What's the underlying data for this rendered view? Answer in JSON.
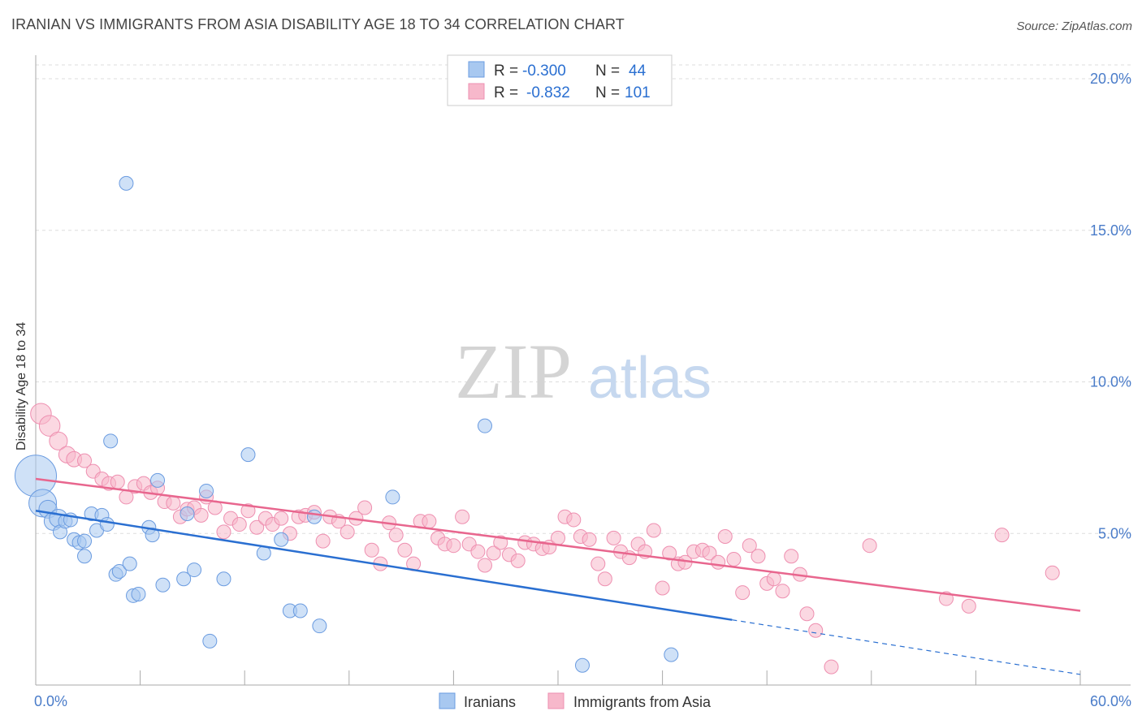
{
  "title": "IRANIAN VS IMMIGRANTS FROM ASIA DISABILITY AGE 18 TO 34 CORRELATION CHART",
  "source": "Source: ZipAtlas.com",
  "watermark": {
    "zip": "ZIP",
    "atlas": "atlas"
  },
  "colors": {
    "blue_fill": "#a8c8f0",
    "blue_stroke": "#6a9be0",
    "blue_line": "#2a6fd1",
    "pink_fill": "#f7b8cb",
    "pink_stroke": "#ee8fb0",
    "pink_line": "#e8668e",
    "tick_text": "#4a7cc9",
    "grid": "#dddddd"
  },
  "legend": {
    "r_label": "R =",
    "n_label": "N =",
    "rows": [
      {
        "r": "-0.300",
        "n": "44"
      },
      {
        "r": "-0.832",
        "n": "101"
      }
    ]
  },
  "bottom_legend": [
    "Iranians",
    "Immigrants from Asia"
  ],
  "chart_data": {
    "type": "scatter",
    "title": "IRANIAN VS IMMIGRANTS FROM ASIA DISABILITY AGE 18 TO 34 CORRELATION CHART",
    "xlabel": "",
    "ylabel": "Disability Age 18 to 34",
    "xlim": [
      0,
      60
    ],
    "ylim": [
      0,
      20
    ],
    "x_tick_labels": [
      "0.0%",
      "60.0%"
    ],
    "y_ticks": [
      5,
      10,
      15,
      20
    ],
    "y_tick_labels": [
      "5.0%",
      "10.0%",
      "15.0%",
      "20.0%"
    ],
    "grid": true,
    "legend_position": "top-center",
    "series": [
      {
        "name": "Iranians",
        "r": -0.3,
        "n": 44,
        "trend": {
          "x_start": 0,
          "y_start": 5.75,
          "x_solid_end": 40,
          "y_solid_end": 2.15,
          "x_end": 60,
          "y_end": 0.35
        },
        "points": [
          [
            0.0,
            6.9,
            3
          ],
          [
            0.4,
            6.0,
            2
          ],
          [
            0.7,
            5.8,
            1.3
          ],
          [
            1.0,
            5.4,
            1.3
          ],
          [
            1.3,
            5.5,
            1.3
          ],
          [
            1.4,
            5.05,
            1
          ],
          [
            1.7,
            5.4,
            1
          ],
          [
            2.0,
            5.45,
            1
          ],
          [
            2.2,
            4.8,
            1
          ],
          [
            2.5,
            4.7,
            1
          ],
          [
            2.8,
            4.75,
            1
          ],
          [
            2.8,
            4.25,
            1
          ],
          [
            3.2,
            5.65,
            1
          ],
          [
            3.5,
            5.1,
            1
          ],
          [
            3.8,
            5.6,
            1
          ],
          [
            4.1,
            5.3,
            1
          ],
          [
            4.3,
            8.05,
            1
          ],
          [
            4.6,
            3.65,
            1
          ],
          [
            4.8,
            3.75,
            1
          ],
          [
            5.2,
            16.55,
            1
          ],
          [
            5.4,
            4.0,
            1
          ],
          [
            5.6,
            2.95,
            1
          ],
          [
            5.9,
            3.0,
            1
          ],
          [
            6.5,
            5.2,
            1
          ],
          [
            6.7,
            4.95,
            1
          ],
          [
            7.0,
            6.75,
            1
          ],
          [
            7.3,
            3.3,
            1
          ],
          [
            8.5,
            3.5,
            1
          ],
          [
            8.7,
            5.65,
            1
          ],
          [
            9.1,
            3.8,
            1
          ],
          [
            9.8,
            6.4,
            1
          ],
          [
            10.0,
            1.45,
            1
          ],
          [
            10.8,
            3.5,
            1
          ],
          [
            12.2,
            7.6,
            1
          ],
          [
            13.1,
            4.35,
            1
          ],
          [
            14.1,
            4.8,
            1
          ],
          [
            14.6,
            2.45,
            1
          ],
          [
            15.2,
            2.45,
            1
          ],
          [
            16.0,
            5.55,
            1
          ],
          [
            16.3,
            1.95,
            1
          ],
          [
            20.5,
            6.2,
            1
          ],
          [
            25.8,
            8.55,
            1
          ],
          [
            31.4,
            0.65,
            1
          ],
          [
            36.5,
            1.0,
            1
          ]
        ]
      },
      {
        "name": "Immigrants from Asia",
        "r": -0.832,
        "n": 101,
        "trend": {
          "x_start": 0,
          "y_start": 6.8,
          "x_end": 60,
          "y_end": 2.45
        },
        "points": [
          [
            0.3,
            8.95,
            1.5
          ],
          [
            0.8,
            8.55,
            1.5
          ],
          [
            1.3,
            8.05,
            1.3
          ],
          [
            1.8,
            7.6,
            1.2
          ],
          [
            2.2,
            7.45,
            1.1
          ],
          [
            2.8,
            7.4,
            1
          ],
          [
            3.3,
            7.05,
            1
          ],
          [
            3.8,
            6.8,
            1
          ],
          [
            4.2,
            6.65,
            1
          ],
          [
            4.7,
            6.7,
            1
          ],
          [
            5.2,
            6.2,
            1
          ],
          [
            5.7,
            6.55,
            1
          ],
          [
            6.2,
            6.65,
            1
          ],
          [
            6.6,
            6.35,
            1
          ],
          [
            7.0,
            6.5,
            1
          ],
          [
            7.4,
            6.05,
            1
          ],
          [
            7.9,
            6.0,
            1
          ],
          [
            8.3,
            5.55,
            1
          ],
          [
            8.7,
            5.8,
            1
          ],
          [
            9.1,
            5.85,
            1
          ],
          [
            9.5,
            5.6,
            1
          ],
          [
            9.8,
            6.2,
            1
          ],
          [
            10.3,
            5.85,
            1
          ],
          [
            10.8,
            5.05,
            1
          ],
          [
            11.2,
            5.5,
            1
          ],
          [
            11.7,
            5.3,
            1
          ],
          [
            12.2,
            5.75,
            1
          ],
          [
            12.7,
            5.2,
            1
          ],
          [
            13.2,
            5.5,
            1
          ],
          [
            13.6,
            5.3,
            1
          ],
          [
            14.1,
            5.5,
            1
          ],
          [
            14.6,
            5.0,
            1
          ],
          [
            15.1,
            5.55,
            1
          ],
          [
            15.5,
            5.6,
            1
          ],
          [
            16.0,
            5.7,
            1
          ],
          [
            16.5,
            4.75,
            1
          ],
          [
            16.9,
            5.55,
            1
          ],
          [
            17.4,
            5.4,
            1
          ],
          [
            17.9,
            5.05,
            1
          ],
          [
            18.4,
            5.5,
            1
          ],
          [
            18.9,
            5.85,
            1
          ],
          [
            19.3,
            4.45,
            1
          ],
          [
            19.8,
            4.0,
            1
          ],
          [
            20.3,
            5.35,
            1
          ],
          [
            20.7,
            4.95,
            1
          ],
          [
            21.2,
            4.45,
            1
          ],
          [
            21.7,
            4.0,
            1
          ],
          [
            22.1,
            5.4,
            1
          ],
          [
            22.6,
            5.4,
            1
          ],
          [
            23.1,
            4.85,
            1
          ],
          [
            23.5,
            4.65,
            1
          ],
          [
            24.0,
            4.6,
            1
          ],
          [
            24.5,
            5.55,
            1
          ],
          [
            24.9,
            4.65,
            1
          ],
          [
            25.4,
            4.4,
            1
          ],
          [
            25.8,
            3.95,
            1
          ],
          [
            26.3,
            4.35,
            1
          ],
          [
            26.7,
            4.7,
            1
          ],
          [
            27.2,
            4.3,
            1
          ],
          [
            27.7,
            4.1,
            1
          ],
          [
            28.1,
            4.7,
            1
          ],
          [
            28.6,
            4.65,
            1
          ],
          [
            29.1,
            4.5,
            1
          ],
          [
            29.5,
            4.55,
            1
          ],
          [
            30.0,
            4.85,
            1
          ],
          [
            30.4,
            5.55,
            1
          ],
          [
            30.9,
            5.45,
            1
          ],
          [
            31.3,
            4.9,
            1
          ],
          [
            31.8,
            4.8,
            1
          ],
          [
            32.3,
            4.0,
            1
          ],
          [
            32.7,
            3.5,
            1
          ],
          [
            33.2,
            4.85,
            1
          ],
          [
            33.6,
            4.4,
            1
          ],
          [
            34.1,
            4.2,
            1
          ],
          [
            34.6,
            4.65,
            1
          ],
          [
            35.0,
            4.4,
            1
          ],
          [
            35.5,
            5.1,
            1
          ],
          [
            36.0,
            3.2,
            1
          ],
          [
            36.4,
            4.35,
            1
          ],
          [
            36.9,
            4.0,
            1
          ],
          [
            37.3,
            4.05,
            1
          ],
          [
            37.8,
            4.4,
            1
          ],
          [
            38.3,
            4.45,
            1
          ],
          [
            38.7,
            4.35,
            1
          ],
          [
            39.2,
            4.05,
            1
          ],
          [
            39.6,
            4.9,
            1
          ],
          [
            40.1,
            4.15,
            1
          ],
          [
            40.6,
            3.05,
            1
          ],
          [
            41.0,
            4.6,
            1
          ],
          [
            41.5,
            4.25,
            1
          ],
          [
            42.0,
            3.35,
            1
          ],
          [
            42.4,
            3.5,
            1
          ],
          [
            42.9,
            3.1,
            1
          ],
          [
            43.4,
            4.25,
            1
          ],
          [
            43.9,
            3.65,
            1
          ],
          [
            44.3,
            2.35,
            1
          ],
          [
            44.8,
            1.8,
            1
          ],
          [
            45.7,
            0.6,
            1
          ],
          [
            47.9,
            4.6,
            1
          ],
          [
            52.3,
            2.85,
            1
          ],
          [
            53.6,
            2.6,
            1
          ],
          [
            55.5,
            4.95,
            1
          ],
          [
            58.4,
            3.7,
            1
          ]
        ]
      }
    ]
  }
}
